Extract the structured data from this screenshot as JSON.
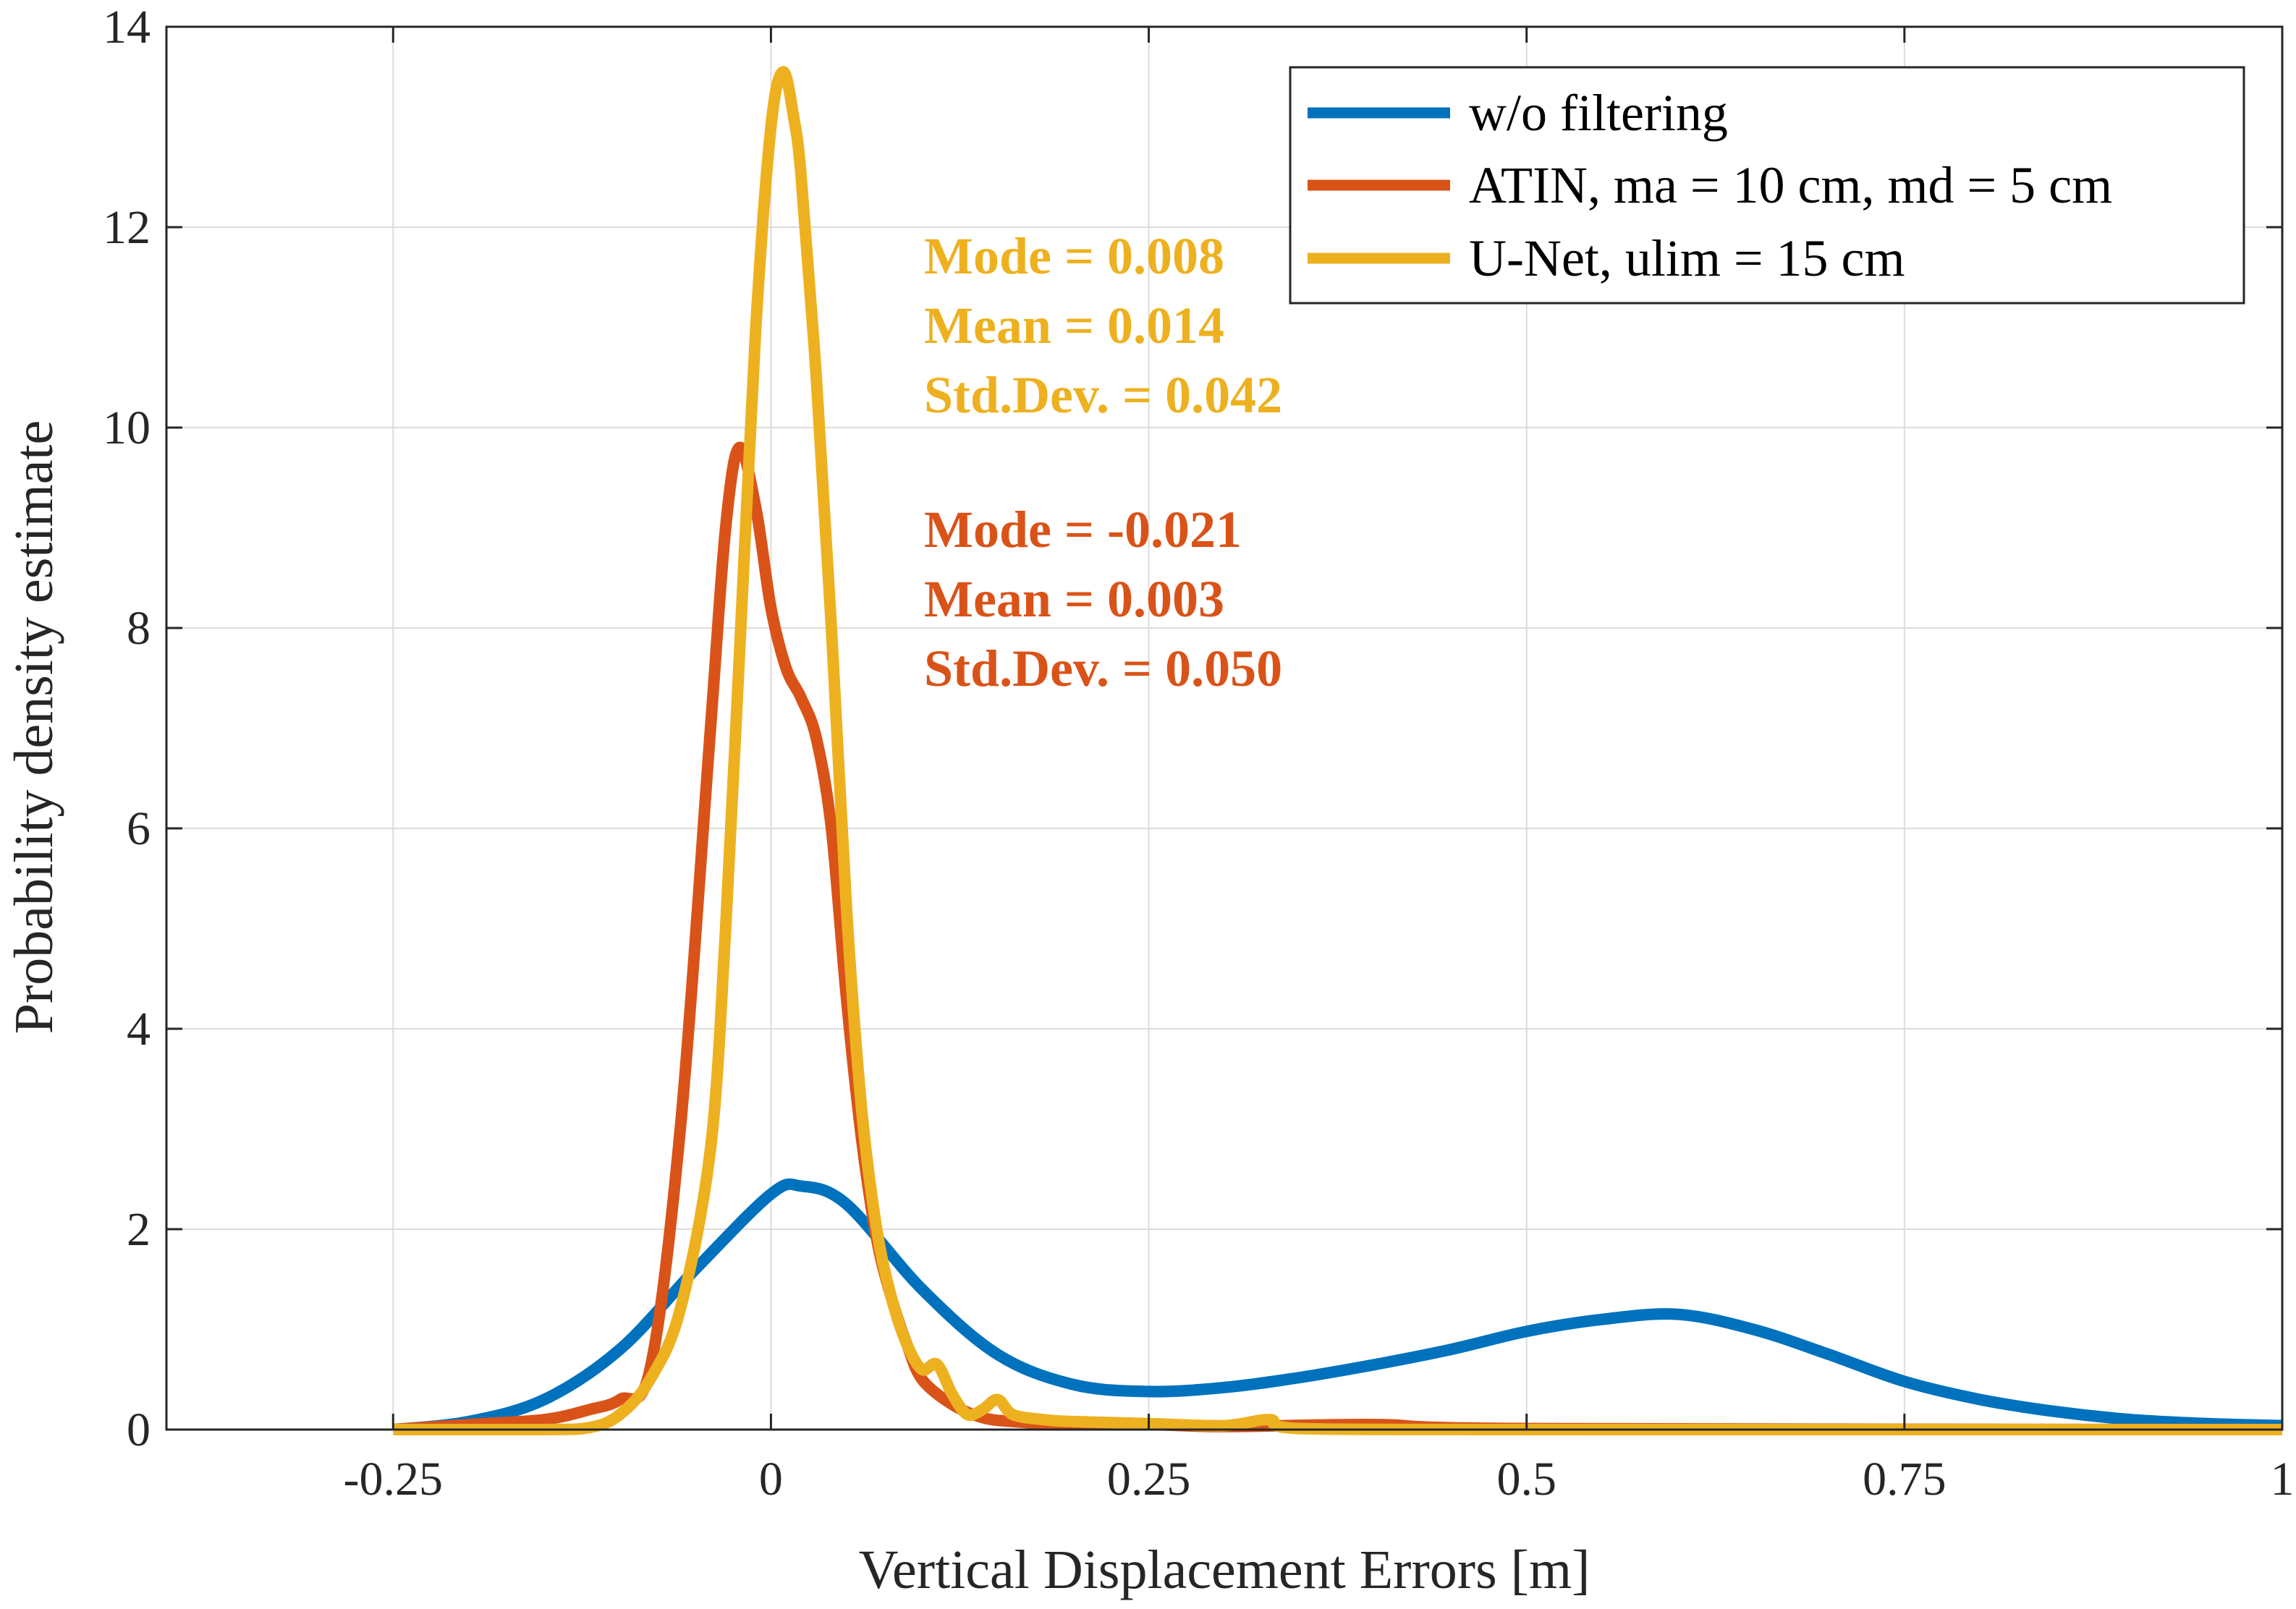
{
  "chart_data": {
    "type": "line",
    "xlabel": "Vertical Displacement Errors [m]",
    "ylabel": "Probability density estimate",
    "xlim": [
      -0.4,
      1.0
    ],
    "ylim": [
      0,
      14
    ],
    "xticks": [
      -0.25,
      0,
      0.25,
      0.5,
      0.75,
      1
    ],
    "xtick_labels": [
      "-0.25",
      "0",
      "0.25",
      "0.5",
      "0.75",
      "1"
    ],
    "yticks": [
      0,
      2,
      4,
      6,
      8,
      10,
      12,
      14
    ],
    "ytick_labels": [
      "0",
      "2",
      "4",
      "6",
      "8",
      "10",
      "12",
      "14"
    ],
    "grid": true,
    "legend_position": "top-right",
    "series": [
      {
        "name": "w/o filtering",
        "color": "#0072BD",
        "x": [
          -0.25,
          -0.2,
          -0.15,
          -0.1,
          -0.05,
          0.0,
          0.02,
          0.05,
          0.1,
          0.15,
          0.2,
          0.25,
          0.3,
          0.35,
          0.4,
          0.45,
          0.5,
          0.55,
          0.6,
          0.65,
          0.7,
          0.75,
          0.8,
          0.85,
          0.9,
          0.95,
          1.0
        ],
        "y": [
          0.0,
          0.08,
          0.3,
          0.8,
          1.6,
          2.35,
          2.43,
          2.25,
          1.4,
          0.75,
          0.45,
          0.38,
          0.42,
          0.52,
          0.65,
          0.8,
          0.98,
          1.1,
          1.15,
          1.0,
          0.75,
          0.48,
          0.3,
          0.18,
          0.1,
          0.06,
          0.04
        ]
      },
      {
        "name": "ATIN, ma = 10 cm, md = 5 cm",
        "color": "#D95319",
        "x": [
          -0.25,
          -0.2,
          -0.15,
          -0.12,
          -0.1,
          -0.08,
          -0.06,
          -0.04,
          -0.03,
          -0.021,
          -0.01,
          0.0,
          0.01,
          0.02,
          0.03,
          0.04,
          0.05,
          0.06,
          0.07,
          0.08,
          0.09,
          0.1,
          0.12,
          0.14,
          0.16,
          0.2,
          0.25,
          0.3,
          0.4,
          0.5,
          1.0
        ],
        "y": [
          0.0,
          0.05,
          0.1,
          0.2,
          0.3,
          0.6,
          3.0,
          7.0,
          9.0,
          9.8,
          9.2,
          8.2,
          7.6,
          7.3,
          6.9,
          6.0,
          4.3,
          2.9,
          1.9,
          1.3,
          0.85,
          0.5,
          0.25,
          0.12,
          0.08,
          0.05,
          0.05,
          0.03,
          0.05,
          0.01,
          0.0
        ]
      },
      {
        "name": "U-Net, ulim = 15 cm",
        "color": "#EDB120",
        "x": [
          -0.25,
          -0.15,
          -0.12,
          -0.1,
          -0.08,
          -0.06,
          -0.04,
          -0.03,
          -0.02,
          -0.01,
          0.0,
          0.008,
          0.015,
          0.02,
          0.03,
          0.04,
          0.05,
          0.06,
          0.07,
          0.08,
          0.09,
          0.1,
          0.11,
          0.12,
          0.13,
          0.14,
          0.15,
          0.16,
          0.18,
          0.2,
          0.25,
          0.3,
          0.33,
          0.35,
          0.5,
          1.0
        ],
        "y": [
          0.0,
          0.0,
          0.02,
          0.15,
          0.5,
          1.2,
          2.8,
          5.0,
          8.0,
          11.0,
          13.0,
          13.55,
          13.1,
          12.5,
          10.5,
          8.0,
          5.2,
          3.2,
          2.0,
          1.3,
          0.85,
          0.6,
          0.65,
          0.35,
          0.15,
          0.2,
          0.3,
          0.15,
          0.1,
          0.08,
          0.06,
          0.04,
          0.1,
          0.01,
          0.0,
          0.0
        ]
      }
    ],
    "annotations": [
      {
        "text": "Mode = 0.008",
        "color": "#EDB120"
      },
      {
        "text": "Mean = 0.014",
        "color": "#EDB120"
      },
      {
        "text": "Std.Dev. = 0.042",
        "color": "#EDB120"
      },
      {
        "text": "Mode = -0.021",
        "color": "#D95319"
      },
      {
        "text": "Mean = 0.003",
        "color": "#D95319"
      },
      {
        "text": "Std.Dev. = 0.050",
        "color": "#D95319"
      }
    ]
  }
}
